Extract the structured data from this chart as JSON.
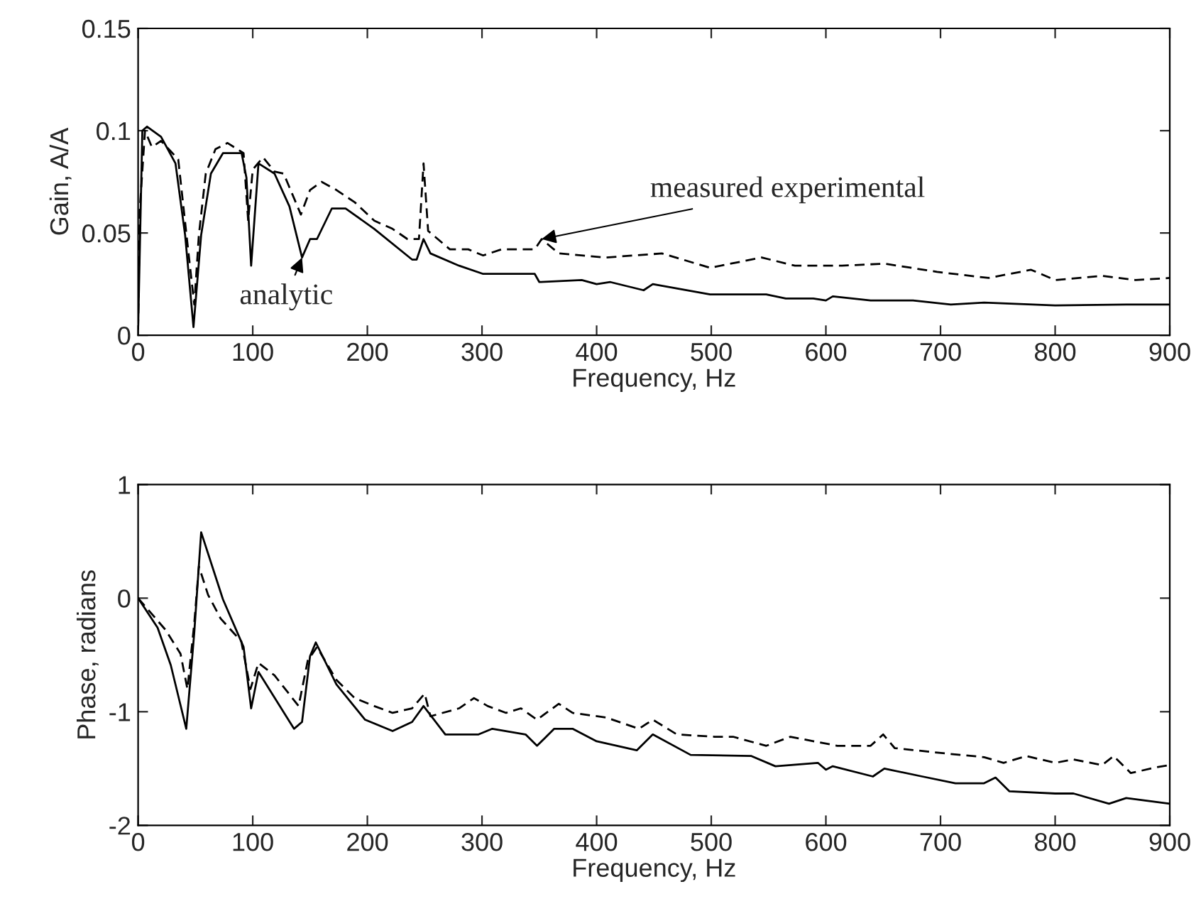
{
  "chart_data": [
    {
      "type": "line",
      "xlabel": "Frequency, Hz",
      "ylabel": "Gain, A/A",
      "xlim": [
        0,
        900
      ],
      "xticks": [
        0,
        100,
        200,
        300,
        400,
        500,
        600,
        700,
        800,
        900
      ],
      "ylim": [
        0,
        0.15
      ],
      "yticks": [
        0,
        0.05,
        0.1,
        0.15
      ],
      "grid": false,
      "legend": false,
      "annotations": [
        {
          "text": "analytic",
          "x": 143,
          "y": 0.038
        },
        {
          "text": "measured experimental",
          "x": 352,
          "y": 0.047
        }
      ],
      "series": [
        {
          "color": "#000000",
          "line_style": "solid",
          "x": [
            0,
            3.7,
            7.8,
            20,
            32.6,
            41,
            48.3,
            55,
            63.5,
            74,
            90.3,
            94.5,
            98.6,
            105,
            119,
            132,
            143,
            150,
            156,
            169,
            181,
            206,
            239,
            243,
            249,
            255,
            280,
            301,
            338,
            346,
            350,
            387,
            400,
            412,
            441,
            449,
            499,
            548,
            565,
            589,
            600,
            606,
            639,
            676,
            709,
            738,
            800,
            862,
            900
          ],
          "values": [
            0.003,
            0.1,
            0.102,
            0.097,
            0.084,
            0.049,
            0.004,
            0.049,
            0.079,
            0.089,
            0.089,
            0.077,
            0.034,
            0.084,
            0.079,
            0.063,
            0.038,
            0.047,
            0.047,
            0.062,
            0.062,
            0.052,
            0.037,
            0.037,
            0.047,
            0.04,
            0.034,
            0.03,
            0.03,
            0.03,
            0.026,
            0.027,
            0.025,
            0.026,
            0.022,
            0.025,
            0.02,
            0.02,
            0.018,
            0.018,
            0.017,
            0.019,
            0.017,
            0.017,
            0.015,
            0.016,
            0.0146,
            0.015,
            0.015
          ]
        },
        {
          "color": "#000000",
          "line_style": "dashed",
          "x": [
            0,
            1.4,
            6,
            12,
            20,
            35,
            43,
            49,
            53,
            59,
            67.5,
            78,
            92,
            96,
            100,
            109,
            119,
            127,
            142,
            150,
            160,
            173,
            189,
            206,
            222,
            235,
            245,
            249,
            253,
            272,
            288,
            301,
            317,
            338,
            346,
            352,
            367,
            408,
            457,
            499,
            544,
            573,
            614,
            651,
            697,
            742,
            779,
            800,
            841,
            870,
            900
          ],
          "values": [
            0.003,
            0.061,
            0.1,
            0.092,
            0.095,
            0.086,
            0.045,
            0.015,
            0.049,
            0.079,
            0.091,
            0.094,
            0.089,
            0.056,
            0.081,
            0.087,
            0.08,
            0.079,
            0.059,
            0.071,
            0.075,
            0.071,
            0.065,
            0.056,
            0.052,
            0.047,
            0.047,
            0.084,
            0.051,
            0.042,
            0.042,
            0.039,
            0.042,
            0.042,
            0.042,
            0.047,
            0.04,
            0.038,
            0.04,
            0.033,
            0.038,
            0.034,
            0.034,
            0.035,
            0.031,
            0.028,
            0.032,
            0.027,
            0.029,
            0.027,
            0.028
          ]
        }
      ]
    },
    {
      "type": "line",
      "xlabel": "Frequency, Hz",
      "ylabel": "Phase, radians",
      "xlim": [
        0,
        900
      ],
      "xticks": [
        0,
        100,
        200,
        300,
        400,
        500,
        600,
        700,
        800,
        900
      ],
      "ylim": [
        -2,
        1
      ],
      "yticks": [
        -2,
        -1,
        0,
        1
      ],
      "grid": false,
      "legend": false,
      "series": [
        {
          "color": "#000000",
          "line_style": "solid",
          "x": [
            0,
            17,
            28.5,
            42,
            49,
            55,
            74,
            92,
            98.6,
            105,
            136,
            143,
            150,
            155,
            173,
            198,
            222,
            239,
            249,
            268,
            297,
            309,
            338,
            348,
            363,
            379,
            400,
            435,
            449,
            482,
            535,
            556,
            593,
            600,
            606,
            641,
            651,
            684,
            713,
            738,
            748,
            760,
            800,
            816,
            847,
            862,
            900
          ],
          "values": [
            0,
            -0.26,
            -0.59,
            -1.15,
            -0.3,
            0.58,
            -0.01,
            -0.43,
            -0.97,
            -0.65,
            -1.15,
            -1.09,
            -0.51,
            -0.39,
            -0.76,
            -1.07,
            -1.17,
            -1.09,
            -0.95,
            -1.2,
            -1.2,
            -1.15,
            -1.2,
            -1.3,
            -1.15,
            -1.15,
            -1.26,
            -1.34,
            -1.2,
            -1.38,
            -1.39,
            -1.48,
            -1.45,
            -1.51,
            -1.48,
            -1.57,
            -1.5,
            -1.57,
            -1.63,
            -1.63,
            -1.58,
            -1.7,
            -1.72,
            -1.72,
            -1.81,
            -1.76,
            -1.81
          ]
        },
        {
          "color": "#000000",
          "line_style": "dashed",
          "x": [
            0,
            24,
            37,
            43,
            49,
            53,
            61,
            72,
            90,
            98,
            105,
            119,
            140,
            148,
            156,
            173,
            189,
            206,
            222,
            239,
            250,
            255,
            280,
            293,
            305,
            321,
            334,
            348,
            367,
            379,
            408,
            437,
            449,
            470,
            503,
            519,
            548,
            569,
            610,
            639,
            650,
            660,
            697,
            738,
            755,
            775,
            800,
            816,
            841,
            851,
            866,
            888,
            900
          ],
          "values": [
            0,
            -0.28,
            -0.49,
            -0.8,
            -0.22,
            0.28,
            0.03,
            -0.18,
            -0.38,
            -0.8,
            -0.57,
            -0.68,
            -0.95,
            -0.55,
            -0.43,
            -0.72,
            -0.88,
            -0.95,
            -1.01,
            -0.97,
            -0.84,
            -1.04,
            -0.97,
            -0.88,
            -0.95,
            -1.01,
            -0.97,
            -1.07,
            -0.93,
            -1.01,
            -1.05,
            -1.15,
            -1.07,
            -1.2,
            -1.22,
            -1.22,
            -1.3,
            -1.22,
            -1.3,
            -1.3,
            -1.2,
            -1.32,
            -1.36,
            -1.4,
            -1.45,
            -1.39,
            -1.45,
            -1.42,
            -1.47,
            -1.39,
            -1.54,
            -1.49,
            -1.47
          ]
        }
      ]
    }
  ]
}
